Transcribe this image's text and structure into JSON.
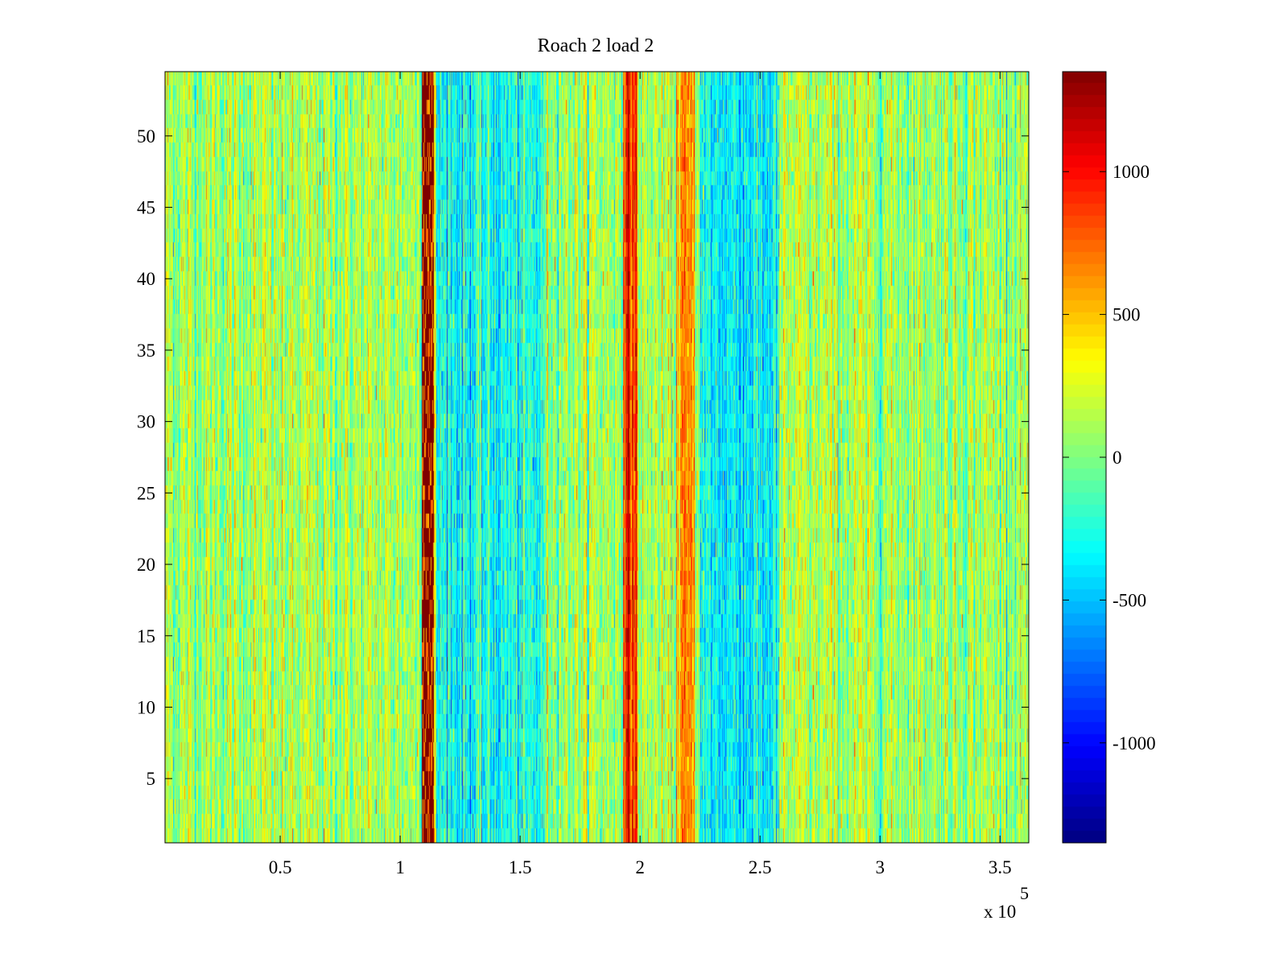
{
  "chart_data": {
    "type": "heatmap",
    "title": "Roach 2 load 2",
    "xlabel": "",
    "ylabel": "",
    "x_multiplier_label": "x 10",
    "x_multiplier_exponent": "5",
    "xlim": [
      2000,
      362000
    ],
    "ylim": [
      0.5,
      54.5
    ],
    "x_ticks": [
      0.5,
      1,
      1.5,
      2,
      2.5,
      3,
      3.5
    ],
    "x_tick_labels": [
      "0.5",
      "1",
      "1.5",
      "2",
      "2.5",
      "3",
      "3.5"
    ],
    "y_ticks": [
      5,
      10,
      15,
      20,
      25,
      30,
      35,
      40,
      45,
      50
    ],
    "y_tick_labels": [
      "5",
      "10",
      "15",
      "20",
      "25",
      "30",
      "35",
      "40",
      "45",
      "50"
    ],
    "rows": 54,
    "colormap": "jet",
    "clim": [
      -1350,
      1350
    ],
    "colorbar_ticks": [
      1000,
      500,
      0,
      -500,
      -1000
    ],
    "colorbar_tick_labels": [
      "1000",
      "500",
      "0",
      "-500",
      "-1000"
    ],
    "baseline_level": 100,
    "features": [
      {
        "x_range": [
          109000,
          114000
        ],
        "level": 1300,
        "kind": "strong vertical band"
      },
      {
        "x_range": [
          115000,
          160000
        ],
        "level": -300,
        "kind": "low region"
      },
      {
        "x_range": [
          193000,
          199000
        ],
        "level": 900,
        "kind": "vertical band"
      },
      {
        "x_range": [
          215000,
          223000
        ],
        "level": 550,
        "kind": "vertical band"
      },
      {
        "x_range": [
          225000,
          258000
        ],
        "level": -350,
        "kind": "low region"
      }
    ]
  }
}
